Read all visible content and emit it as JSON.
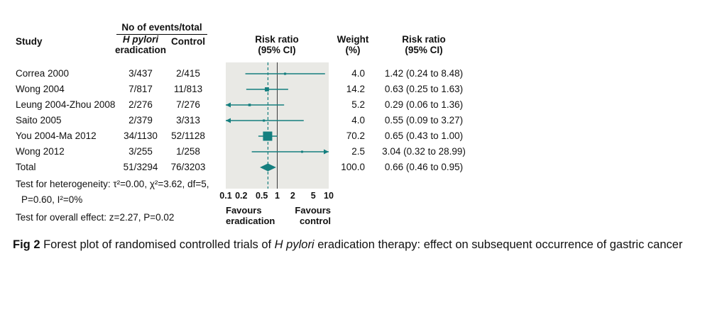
{
  "figure": {
    "events_header": "No of events/total",
    "col_study": "Study",
    "col_eradication_line1": "H pylori",
    "col_eradication_line2": "eradication",
    "col_control": "Control",
    "col_riskratio_line1": "Risk ratio",
    "col_riskratio_line2": "(95% CI)",
    "col_weight_line1": "Weight",
    "col_weight_line2": "(%)",
    "col_rrtext_line1": "Risk ratio",
    "col_rrtext_line2": "(95% CI)",
    "favours_left_line1": "Favours",
    "favours_left_line2": "eradication",
    "favours_right_line1": "Favours",
    "favours_right_line2": "control",
    "heterogeneity_line1": "Test for heterogeneity: τ²=0.00, χ²=3.62, df=5,",
    "heterogeneity_line2": "P=0.60, I²=0%",
    "overall_effect": "Test for overall effect: z=2.27, P=0.02"
  },
  "caption": {
    "label": "Fig 2",
    "text_before_italic": " Forest plot of randomised controlled trials of ",
    "italic": "H pylori",
    "text_after_italic": " eradication therapy: effect on subsequent occurrence of gastric cancer"
  },
  "colors": {
    "teal": "#157f7f",
    "plot_bg": "#e9e9e5",
    "null_line": "#3a3a3a"
  },
  "chart_data": {
    "type": "forest",
    "plot_title": "Risk ratio (95% CI)",
    "x_scale": "log",
    "xlim": [
      0.1,
      10
    ],
    "x_ticks": [
      "0.1",
      "0.2",
      "0.5",
      "1",
      "2",
      "5",
      "10"
    ],
    "null_line": 1,
    "pooled_estimate": 0.66,
    "favours_left": "Favours eradication",
    "favours_right": "Favours control",
    "rows": [
      {
        "study": "Correa 2000",
        "eradication": "3/437",
        "control": "2/415",
        "rr": 1.42,
        "lo": 0.24,
        "hi": 8.48,
        "weight": 4.0,
        "weight_text": "4.0",
        "rr_text": "1.42 (0.24 to 8.48)"
      },
      {
        "study": "Wong 2004",
        "eradication": "7/817",
        "control": "11/813",
        "rr": 0.63,
        "lo": 0.25,
        "hi": 1.63,
        "weight": 14.2,
        "weight_text": "14.2",
        "rr_text": "0.63 (0.25 to 1.63)"
      },
      {
        "study": "Leung 2004-Zhou 2008",
        "eradication": "2/276",
        "control": "7/276",
        "rr": 0.29,
        "lo": 0.06,
        "hi": 1.36,
        "weight": 5.2,
        "weight_text": "5.2",
        "rr_text": "0.29 (0.06 to 1.36)"
      },
      {
        "study": "Saito 2005",
        "eradication": "2/379",
        "control": "3/313",
        "rr": 0.55,
        "lo": 0.09,
        "hi": 3.27,
        "weight": 4.0,
        "weight_text": "4.0",
        "rr_text": "0.55 (0.09 to 3.27)"
      },
      {
        "study": "You 2004-Ma 2012",
        "eradication": "34/1130",
        "control": "52/1128",
        "rr": 0.65,
        "lo": 0.43,
        "hi": 1.0,
        "weight": 70.2,
        "weight_text": "70.2",
        "rr_text": "0.65 (0.43 to 1.00)"
      },
      {
        "study": "Wong 2012",
        "eradication": "3/255",
        "control": "1/258",
        "rr": 3.04,
        "lo": 0.32,
        "hi": 28.99,
        "weight": 2.5,
        "weight_text": "2.5",
        "rr_text": "3.04 (0.32 to 28.99)"
      }
    ],
    "total": {
      "study": "Total",
      "eradication": "51/3294",
      "control": "76/3203",
      "rr": 0.66,
      "lo": 0.46,
      "hi": 0.95,
      "weight_text": "100.0",
      "rr_text": "0.66 (0.46 to 0.95)"
    }
  }
}
